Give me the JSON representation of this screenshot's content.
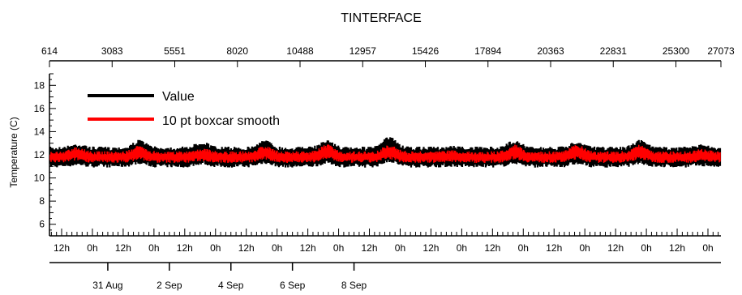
{
  "chart_data": {
    "type": "line",
    "title": "TINTERFACE",
    "ylabel": "Temperature (C)",
    "xlabel": "",
    "ylim": [
      5,
      19
    ],
    "y_ticks": [
      6,
      8,
      10,
      12,
      14,
      16,
      18
    ],
    "top_axis": {
      "range": [
        614,
        27073
      ],
      "tick_labels": [
        "614",
        "3083",
        "5551",
        "8020",
        "10488",
        "12957",
        "15426",
        "17894",
        "20363",
        "22831",
        "25300",
        "27073"
      ]
    },
    "bottom_axis": {
      "hour_labels": [
        "12h",
        "0h",
        "12h",
        "0h",
        "12h",
        "0h",
        "12h",
        "0h",
        "12h",
        "0h",
        "12h",
        "0h",
        "12h",
        "0h",
        "12h",
        "0h",
        "12h",
        "0h",
        "12h",
        "0h",
        "12h",
        "0h"
      ],
      "date_labels": [
        "31 Aug",
        "2 Sep",
        "4 Sep",
        "6 Sep",
        "8 Sep"
      ]
    },
    "legend": {
      "placement": "top-left"
    },
    "grid": false,
    "series": [
      {
        "name": "Value",
        "color": "#000000",
        "style": "noisy band",
        "baseline": 11.8,
        "band_low": 10.9,
        "band_high": 12.7,
        "daily_peaks": [
          13.0,
          13.3,
          13.2,
          13.3,
          13.3,
          13.6,
          12.8,
          13.3,
          13.2,
          13.3,
          12.9
        ]
      },
      {
        "name": "10 pt boxcar smooth",
        "color": "#ff0000",
        "style": "smoothed band",
        "baseline": 11.8,
        "band_low": 11.3,
        "band_high": 12.3,
        "daily_peaks": [
          12.7,
          12.8,
          12.6,
          12.8,
          12.9,
          12.9,
          12.4,
          12.9,
          12.9,
          12.9,
          12.5
        ]
      }
    ]
  }
}
